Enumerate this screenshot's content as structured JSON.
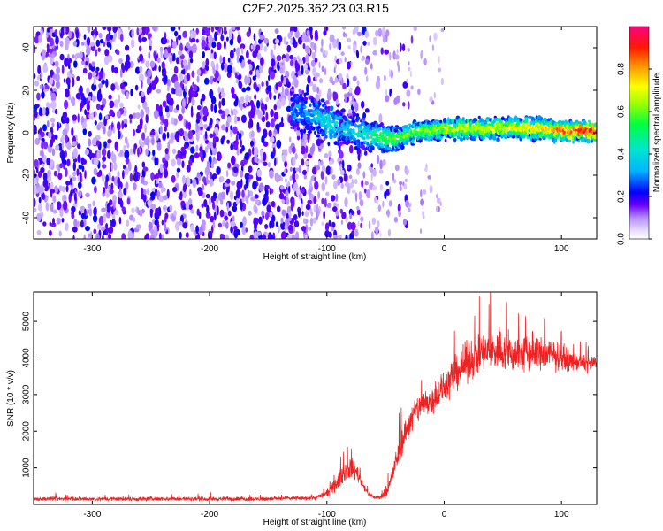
{
  "title": "C2E2.2025.362.23.03.R15",
  "chart_data": [
    {
      "type": "heatmap",
      "name": "spectrogram",
      "xlabel": "Height of straight line (km)",
      "ylabel": "Frequency (Hz)",
      "xlim": [
        -350,
        130
      ],
      "ylim": [
        -50,
        50
      ],
      "xticks": [
        -300,
        -200,
        -100,
        0,
        100
      ],
      "yticks": [
        -40,
        -20,
        0,
        20,
        40
      ],
      "colorbar": {
        "label": "Normalized spectral amplitude",
        "range": [
          0,
          1
        ],
        "ticks": [
          "0.0",
          "0.2",
          "0.4",
          "0.6",
          "0.8"
        ],
        "colors": [
          "#ffffff",
          "#dcc8ff",
          "#8a2be2",
          "#5b00e0",
          "#0000ff",
          "#00bfff",
          "#00e5c0",
          "#00ff00",
          "#ffff00",
          "#ff8c00",
          "#ff0000",
          "#ff0080"
        ]
      },
      "features": {
        "noise_band_until_km": -45,
        "signal_center_freq_hz": [
          [
            -120,
            10
          ],
          [
            -110,
            7
          ],
          [
            -100,
            5
          ],
          [
            -90,
            3
          ],
          [
            -80,
            1
          ],
          [
            -70,
            0
          ],
          [
            -60,
            -2
          ],
          [
            -50,
            -3
          ],
          [
            -40,
            -3
          ],
          [
            -30,
            -1
          ],
          [
            -20,
            1
          ],
          [
            -10,
            1
          ],
          [
            0,
            2
          ],
          [
            10,
            2
          ],
          [
            20,
            2
          ],
          [
            30,
            2
          ],
          [
            40,
            2
          ],
          [
            50,
            2
          ],
          [
            60,
            2
          ],
          [
            70,
            2
          ],
          [
            80,
            2
          ],
          [
            90,
            1
          ],
          [
            100,
            1
          ],
          [
            110,
            1
          ],
          [
            120,
            1
          ],
          [
            130,
            1
          ]
        ],
        "signal_intensity": [
          [
            -120,
            0.3
          ],
          [
            -100,
            0.4
          ],
          [
            -80,
            0.35
          ],
          [
            -60,
            0.5
          ],
          [
            -40,
            0.6
          ],
          [
            -20,
            0.6
          ],
          [
            0,
            0.65
          ],
          [
            20,
            0.7
          ],
          [
            40,
            0.7
          ],
          [
            60,
            0.7
          ],
          [
            80,
            0.75
          ],
          [
            100,
            0.85
          ],
          [
            130,
            0.95
          ]
        ]
      }
    },
    {
      "type": "line",
      "name": "snr",
      "xlabel": "Height of straight line (km)",
      "ylabel": "SNR (10 * v/v)",
      "xlim": [
        -350,
        130
      ],
      "ylim": [
        0,
        5800
      ],
      "xticks": [
        -300,
        -200,
        -100,
        0,
        100
      ],
      "yticks": [
        1000,
        2000,
        3000,
        4000,
        5000
      ],
      "color": "#ee2222",
      "envelope": {
        "x": [
          -350,
          -300,
          -250,
          -200,
          -150,
          -110,
          -100,
          -95,
          -90,
          -85,
          -80,
          -75,
          -70,
          -65,
          -60,
          -55,
          -50,
          -45,
          -40,
          -35,
          -30,
          -25,
          -20,
          -15,
          -10,
          -5,
          0,
          10,
          20,
          30,
          40,
          50,
          60,
          70,
          80,
          90,
          100,
          110,
          120,
          130
        ],
        "mean": [
          150,
          150,
          150,
          150,
          150,
          180,
          300,
          450,
          650,
          900,
          1000,
          900,
          600,
          300,
          200,
          180,
          300,
          700,
          1300,
          1800,
          2200,
          2500,
          2700,
          2800,
          2900,
          3000,
          3200,
          3600,
          3900,
          4100,
          4200,
          4200,
          4100,
          4100,
          4100,
          4100,
          4000,
          3900,
          3850,
          3850
        ],
        "spread": [
          80,
          80,
          80,
          80,
          80,
          80,
          150,
          220,
          300,
          400,
          450,
          350,
          200,
          100,
          80,
          80,
          200,
          400,
          500,
          550,
          600,
          600,
          600,
          600,
          600,
          600,
          700,
          700,
          800,
          800,
          800,
          800,
          800,
          800,
          700,
          700,
          500,
          350,
          300,
          300
        ]
      }
    }
  ]
}
